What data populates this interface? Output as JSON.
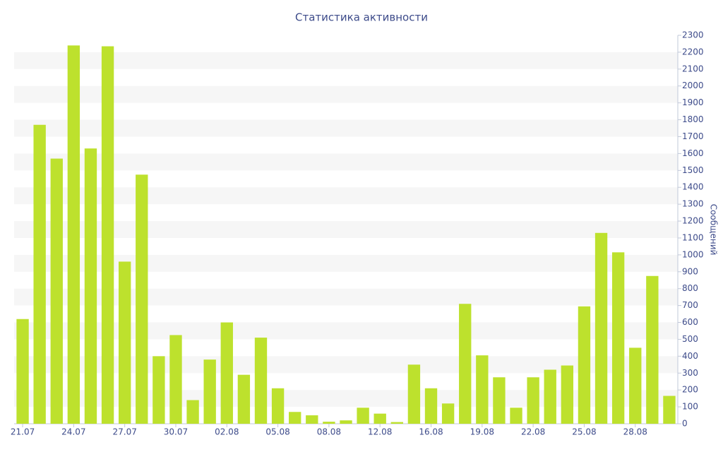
{
  "chart_data": {
    "type": "bar",
    "title": "Статистика активности",
    "y_label": "Сообщений",
    "categories": [
      "21.07",
      null,
      null,
      "24.07",
      null,
      null,
      "27.07",
      null,
      null,
      "30.07",
      null,
      null,
      "02.08",
      null,
      null,
      "05.08",
      null,
      null,
      "08.08",
      null,
      null,
      "12.08",
      null,
      null,
      "16.08",
      null,
      null,
      "19.08",
      null,
      null,
      "22.08",
      null,
      null,
      "25.08",
      null,
      null,
      "28.08",
      null,
      null
    ],
    "values": [
      620,
      1770,
      1570,
      2240,
      1630,
      2235,
      960,
      1475,
      400,
      525,
      140,
      380,
      600,
      290,
      510,
      210,
      70,
      50,
      12,
      20,
      95,
      60,
      10,
      350,
      210,
      120,
      710,
      405,
      275,
      95,
      275,
      320,
      345,
      695,
      1130,
      1015,
      450,
      875,
      165
    ],
    "color": "#bde12d",
    "ylim": [
      0,
      2300
    ],
    "yticks": [
      0,
      100,
      200,
      300,
      400,
      500,
      600,
      700,
      800,
      900,
      1000,
      1100,
      1200,
      1300,
      1400,
      1500,
      1600,
      1700,
      1800,
      1900,
      2000,
      2100,
      2200,
      2300
    ],
    "grid": true
  }
}
